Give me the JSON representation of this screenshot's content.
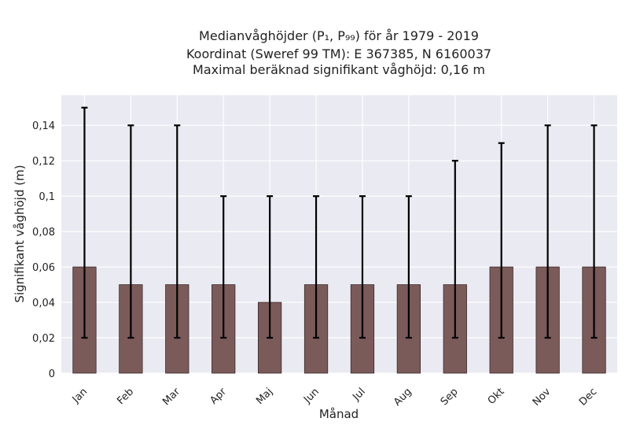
{
  "chart_data": {
    "type": "bar",
    "title_lines": [
      "Medianvåghöjder (P₁, P₉₉) för år 1979 - 2019",
      "Koordinat (Sweref 99 TM): E 367385, N 6160037",
      "Maximal beräknad signifikant våghöjd: 0,16 m"
    ],
    "xlabel": "Månad",
    "ylabel": "Signifikant våghöjd (m)",
    "categories": [
      "Jan",
      "Feb",
      "Mar",
      "Apr",
      "Maj",
      "Jun",
      "Jul",
      "Aug",
      "Sep",
      "Okt",
      "Nov",
      "Dec"
    ],
    "values": [
      0.06,
      0.05,
      0.05,
      0.05,
      0.04,
      0.05,
      0.05,
      0.05,
      0.05,
      0.06,
      0.06,
      0.06
    ],
    "p1": [
      0.02,
      0.02,
      0.02,
      0.02,
      0.02,
      0.02,
      0.02,
      0.02,
      0.02,
      0.02,
      0.02,
      0.02
    ],
    "p99": [
      0.15,
      0.14,
      0.14,
      0.1,
      0.1,
      0.1,
      0.1,
      0.1,
      0.12,
      0.13,
      0.14,
      0.14
    ],
    "ylim": [
      0,
      0.157
    ],
    "yticks": [
      0,
      0.02,
      0.04,
      0.06,
      0.08,
      0.1,
      0.12,
      0.14
    ],
    "ytick_labels": [
      "0",
      "0,02",
      "0,04",
      "0,06",
      "0,08",
      "0,1",
      "0,12",
      "0,14"
    ],
    "grid": true,
    "colors": {
      "bar": "#7b5a5a",
      "plot_bg": "#eaeaf2",
      "error": "#000000"
    }
  }
}
